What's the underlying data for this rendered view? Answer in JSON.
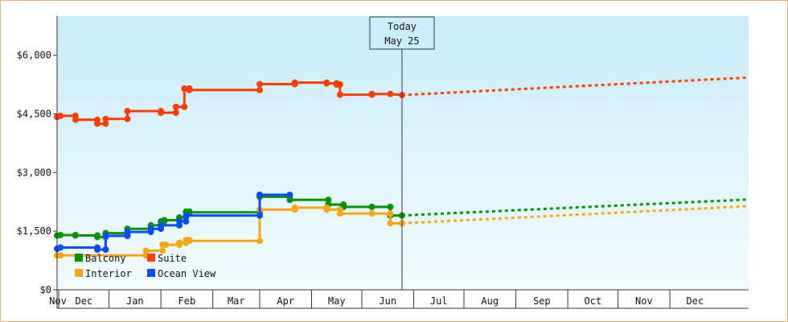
{
  "chart_data": {
    "type": "line",
    "title": "",
    "xlabel": "",
    "ylabel": "",
    "y_ticks": [
      "$0",
      "$1,500",
      "$3,000",
      "$4,500",
      "$6,000"
    ],
    "y_tick_values": [
      0,
      1500,
      3000,
      4500,
      6000
    ],
    "ylim": [
      0,
      7000
    ],
    "x_months": [
      "Nov",
      "Dec",
      "Jan",
      "Feb",
      "Mar",
      "Apr",
      "May",
      "Jun",
      "Jul",
      "Aug",
      "Sep",
      "Oct",
      "Nov",
      "Dec"
    ],
    "xlim": [
      "2018-10-31",
      "2019-12-18"
    ],
    "today": {
      "line1": "Today",
      "line2": "May 25",
      "date": "2019-05-25"
    },
    "legend": {
      "placement": "bottom-left"
    },
    "grid": false,
    "background_gradient": [
      "#c9ecf8",
      "#f2fbfe"
    ],
    "series": [
      {
        "name": "Suite",
        "color": "#ff3c00",
        "points": [
          [
            "2018-10-31",
            4420
          ],
          [
            "2018-11-02",
            4450
          ],
          [
            "2018-11-11",
            4450
          ],
          [
            "2018-11-11",
            4350
          ],
          [
            "2018-11-24",
            4350
          ],
          [
            "2018-11-24",
            4250
          ],
          [
            "2018-11-29",
            4250
          ],
          [
            "2018-11-29",
            4370
          ],
          [
            "2018-12-12",
            4370
          ],
          [
            "2018-12-12",
            4570
          ],
          [
            "2019-01-01",
            4570
          ],
          [
            "2019-01-01",
            4530
          ],
          [
            "2019-01-10",
            4530
          ],
          [
            "2019-01-10",
            4680
          ],
          [
            "2019-01-15",
            4680
          ],
          [
            "2019-01-15",
            5150
          ],
          [
            "2019-01-18",
            5150
          ],
          [
            "2019-01-18",
            5110
          ],
          [
            "2019-03-01",
            5110
          ],
          [
            "2019-03-01",
            5260
          ],
          [
            "2019-03-22",
            5260
          ],
          [
            "2019-03-22",
            5300
          ],
          [
            "2019-04-10",
            5300
          ],
          [
            "2019-04-10",
            5280
          ],
          [
            "2019-04-16",
            5280
          ],
          [
            "2019-04-16",
            5250
          ],
          [
            "2019-04-18",
            5250
          ],
          [
            "2019-04-18",
            4990
          ],
          [
            "2019-05-07",
            4990
          ],
          [
            "2019-05-07",
            5010
          ],
          [
            "2019-05-18",
            5010
          ],
          [
            "2019-05-25",
            4980
          ]
        ],
        "forecast": [
          [
            "2019-05-25",
            4980
          ],
          [
            "2019-12-18",
            5430
          ]
        ]
      },
      {
        "name": "Balcony",
        "color": "#009400",
        "points": [
          [
            "2018-10-31",
            1390
          ],
          [
            "2018-11-02",
            1400
          ],
          [
            "2018-11-11",
            1400
          ],
          [
            "2018-11-11",
            1390
          ],
          [
            "2018-11-24",
            1390
          ],
          [
            "2018-11-24",
            1350
          ],
          [
            "2018-11-29",
            1350
          ],
          [
            "2018-11-29",
            1450
          ],
          [
            "2018-12-12",
            1450
          ],
          [
            "2018-12-12",
            1560
          ],
          [
            "2018-12-26",
            1560
          ],
          [
            "2018-12-26",
            1650
          ],
          [
            "2019-01-01",
            1650
          ],
          [
            "2019-01-01",
            1750
          ],
          [
            "2019-01-03",
            1750
          ],
          [
            "2019-01-03",
            1780
          ],
          [
            "2019-01-12",
            1780
          ],
          [
            "2019-01-12",
            1850
          ],
          [
            "2019-01-16",
            1850
          ],
          [
            "2019-01-16",
            2000
          ],
          [
            "2019-01-18",
            2000
          ],
          [
            "2019-01-18",
            1980
          ],
          [
            "2019-03-01",
            1980
          ],
          [
            "2019-03-01",
            2380
          ],
          [
            "2019-03-19",
            2380
          ],
          [
            "2019-03-19",
            2300
          ],
          [
            "2019-04-11",
            2300
          ],
          [
            "2019-04-11",
            2180
          ],
          [
            "2019-04-20",
            2180
          ],
          [
            "2019-04-20",
            2120
          ],
          [
            "2019-05-07",
            2120
          ],
          [
            "2019-05-18",
            2120
          ],
          [
            "2019-05-18",
            1900
          ],
          [
            "2019-05-25",
            1900
          ]
        ],
        "forecast": [
          [
            "2019-05-25",
            1900
          ],
          [
            "2019-12-18",
            2310
          ]
        ]
      },
      {
        "name": "Interior",
        "color": "#f9a613",
        "points": [
          [
            "2018-10-31",
            880
          ],
          [
            "2018-11-02",
            880
          ],
          [
            "2018-12-23",
            880
          ],
          [
            "2018-12-23",
            1000
          ],
          [
            "2019-01-02",
            1000
          ],
          [
            "2019-01-02",
            1150
          ],
          [
            "2019-01-04",
            1150
          ],
          [
            "2019-01-12",
            1150
          ],
          [
            "2019-01-12",
            1200
          ],
          [
            "2019-01-16",
            1200
          ],
          [
            "2019-01-16",
            1270
          ],
          [
            "2019-01-18",
            1270
          ],
          [
            "2019-01-18",
            1250
          ],
          [
            "2019-03-01",
            1250
          ],
          [
            "2019-03-01",
            2050
          ],
          [
            "2019-03-22",
            2050
          ],
          [
            "2019-03-22",
            2100
          ],
          [
            "2019-04-10",
            2100
          ],
          [
            "2019-04-10",
            2050
          ],
          [
            "2019-04-18",
            2050
          ],
          [
            "2019-04-18",
            1950
          ],
          [
            "2019-05-07",
            1950
          ],
          [
            "2019-05-18",
            1950
          ],
          [
            "2019-05-18",
            1700
          ],
          [
            "2019-05-25",
            1700
          ]
        ],
        "forecast": [
          [
            "2019-05-25",
            1700
          ],
          [
            "2019-12-18",
            2140
          ]
        ]
      },
      {
        "name": "Ocean View",
        "color": "#0a4bff",
        "points": [
          [
            "2018-10-31",
            1050
          ],
          [
            "2018-11-02",
            1080
          ],
          [
            "2018-11-24",
            1080
          ],
          [
            "2018-11-24",
            1030
          ],
          [
            "2018-11-29",
            1030
          ],
          [
            "2018-11-29",
            1380
          ],
          [
            "2018-12-12",
            1380
          ],
          [
            "2018-12-12",
            1480
          ],
          [
            "2018-12-26",
            1480
          ],
          [
            "2018-12-26",
            1560
          ],
          [
            "2019-01-01",
            1560
          ],
          [
            "2019-01-01",
            1650
          ],
          [
            "2019-01-12",
            1650
          ],
          [
            "2019-01-12",
            1750
          ],
          [
            "2019-01-16",
            1750
          ],
          [
            "2019-01-16",
            1900
          ],
          [
            "2019-03-01",
            1900
          ],
          [
            "2019-03-01",
            2430
          ],
          [
            "2019-03-19",
            2430
          ]
        ],
        "forecast": []
      }
    ]
  }
}
